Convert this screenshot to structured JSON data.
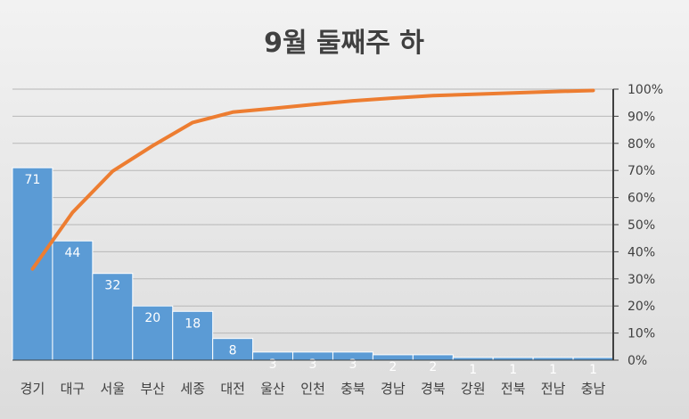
{
  "chart_data": {
    "type": "bar",
    "title": "9월 둘째주 하",
    "xlabel": "",
    "ylabel": "",
    "categories": [
      "경기",
      "대구",
      "서울",
      "부산",
      "세종",
      "대전",
      "울산",
      "인천",
      "충북",
      "경남",
      "경북",
      "강원",
      "전북",
      "전남",
      "충남"
    ],
    "values": [
      71,
      44,
      32,
      20,
      18,
      8,
      3,
      3,
      3,
      2,
      2,
      1,
      1,
      1,
      1
    ],
    "ylim": [
      0,
      100
    ],
    "secondary_axis": {
      "ylim": [
        0,
        100
      ],
      "ticks": [
        "0%",
        "10%",
        "20%",
        "30%",
        "40%",
        "50%",
        "60%",
        "70%",
        "80%",
        "90%",
        "100%"
      ]
    },
    "series": [
      {
        "type": "bar",
        "values": [
          71,
          44,
          32,
          20,
          18,
          8,
          3,
          3,
          3,
          2,
          2,
          1,
          1,
          1,
          1
        ]
      },
      {
        "type": "line",
        "axis": "secondary",
        "values": [
          33.7,
          54.5,
          69.7,
          79.1,
          87.7,
          91.5,
          92.9,
          94.3,
          95.7,
          96.7,
          97.6,
          98.1,
          98.6,
          99.1,
          99.5
        ]
      }
    ],
    "grid": true,
    "legend": "none",
    "colors": {
      "bar": "#5b9bd5",
      "line": "#ed7d31",
      "axis": "#404040",
      "grid": "#b7b7b7"
    }
  }
}
